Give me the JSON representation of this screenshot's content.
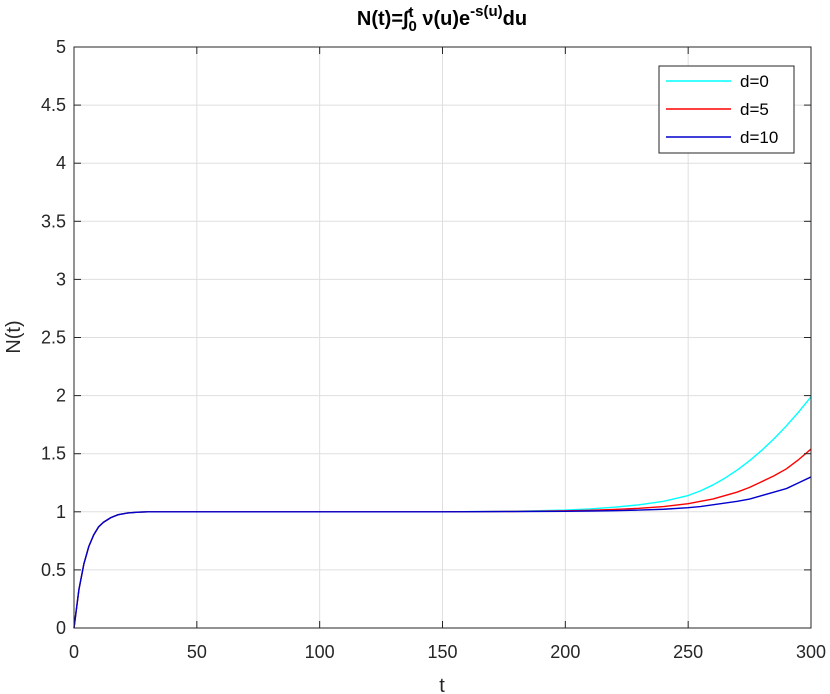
{
  "chart_data": {
    "type": "line",
    "title": {
      "main": "N(t)=",
      "integral": "∫",
      "upper": "t",
      "lower": "0",
      "body": " ν(u)e",
      "exponent": "-s(u)",
      "tail": "du"
    },
    "xlabel": "t",
    "ylabel": "N(t)",
    "xlim": [
      0,
      300
    ],
    "ylim": [
      0,
      5
    ],
    "xticks": [
      0,
      50,
      100,
      150,
      200,
      250,
      300
    ],
    "xtick_labels": [
      "0",
      "50",
      "100",
      "150",
      "200",
      "250",
      "300"
    ],
    "yticks": [
      0,
      0.5,
      1,
      1.5,
      2,
      2.5,
      3,
      3.5,
      4,
      4.5,
      5
    ],
    "ytick_labels": [
      "0",
      "0.5",
      "1",
      "1.5",
      "2",
      "2.5",
      "3",
      "3.5",
      "4",
      "4.5",
      "5"
    ],
    "grid": true,
    "legend_position": "top-right",
    "series": [
      {
        "name": "d=0",
        "color": "#00ffff",
        "x": [
          0,
          2,
          4,
          6,
          8,
          10,
          12,
          15,
          18,
          22,
          26,
          30,
          50,
          100,
          150,
          180,
          200,
          210,
          220,
          230,
          240,
          250,
          255,
          260,
          265,
          270,
          275,
          280,
          285,
          290,
          295,
          300
        ],
        "y": [
          0,
          0.33,
          0.55,
          0.7,
          0.8,
          0.87,
          0.91,
          0.95,
          0.975,
          0.99,
          0.997,
          1.0,
          1.0,
          1.0,
          1.0,
          1.005,
          1.015,
          1.025,
          1.04,
          1.06,
          1.09,
          1.14,
          1.18,
          1.23,
          1.29,
          1.36,
          1.44,
          1.53,
          1.63,
          1.74,
          1.86,
          1.99
        ]
      },
      {
        "name": "d=5",
        "color": "#ff0000",
        "x": [
          0,
          2,
          4,
          6,
          8,
          10,
          12,
          15,
          18,
          22,
          26,
          30,
          50,
          100,
          150,
          180,
          200,
          210,
          220,
          230,
          240,
          250,
          255,
          260,
          265,
          270,
          275,
          280,
          285,
          290,
          295,
          300
        ],
        "y": [
          0,
          0.33,
          0.55,
          0.7,
          0.8,
          0.87,
          0.91,
          0.95,
          0.975,
          0.99,
          0.997,
          1.0,
          1.0,
          1.0,
          1.0,
          1.003,
          1.008,
          1.013,
          1.02,
          1.03,
          1.045,
          1.07,
          1.09,
          1.11,
          1.14,
          1.17,
          1.21,
          1.26,
          1.31,
          1.37,
          1.45,
          1.54
        ]
      },
      {
        "name": "d=10",
        "color": "#0000cc",
        "x": [
          0,
          2,
          4,
          6,
          8,
          10,
          12,
          15,
          18,
          22,
          26,
          30,
          50,
          100,
          150,
          180,
          200,
          210,
          220,
          230,
          240,
          250,
          255,
          260,
          265,
          270,
          275,
          280,
          285,
          290,
          295,
          300
        ],
        "y": [
          0,
          0.33,
          0.55,
          0.7,
          0.8,
          0.87,
          0.91,
          0.95,
          0.975,
          0.99,
          0.997,
          1.0,
          1.0,
          1.0,
          1.0,
          1.002,
          1.004,
          1.007,
          1.01,
          1.015,
          1.022,
          1.035,
          1.045,
          1.06,
          1.075,
          1.09,
          1.11,
          1.14,
          1.17,
          1.2,
          1.25,
          1.3
        ]
      }
    ]
  }
}
